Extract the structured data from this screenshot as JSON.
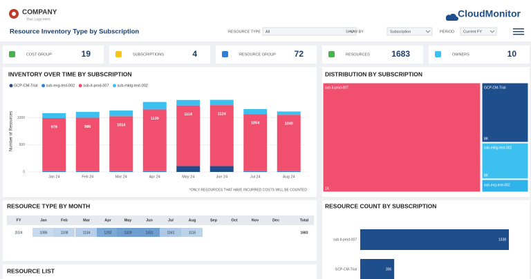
{
  "header": {
    "company": "COMPANY",
    "tagline": "Your Logo Here",
    "title": "Resource Inventory Type by Subscription",
    "brand": "CloudMonitor",
    "filters": [
      {
        "label": "RESOURCE TYPE",
        "value": "All"
      },
      {
        "label": "SHOW BY",
        "value": "Subscription"
      },
      {
        "label": "PERIOD",
        "value": "Current FY"
      }
    ]
  },
  "kpis": [
    {
      "label": "COST GROUP",
      "value": 19
    },
    {
      "label": "SUBSCRIPTIONS",
      "value": 4
    },
    {
      "label": "RESOURCE GROUP",
      "value": 72
    },
    {
      "label": "RESOURCES",
      "value": 1683
    },
    {
      "label": "OWNERS",
      "value": 10
    }
  ],
  "inventory": {
    "type": "bar",
    "stacked": true,
    "title": "INVENTORY OVER TIME BY SUBSCRIPTION",
    "y_label": "Number of Resources",
    "note": "*ONLY RESOURCES THAT HAVE INCURRED COSTS WILL BE COUNTED",
    "categories": [
      "Jan 24",
      "Feb 24",
      "Mar 24",
      "Apr 24",
      "May 24",
      "Jun 24",
      "Jul 24",
      "Aug 24"
    ],
    "series": [
      {
        "name": "GCP-CM-Trial",
        "color": "#1f4e8c",
        "values": [
          0,
          0,
          0,
          0,
          110,
          110,
          0,
          0
        ]
      },
      {
        "name": "sub-eng-test-002",
        "color": "#2f7fd6",
        "values": [
          15,
          15,
          15,
          15,
          0,
          0,
          15,
          15
        ]
      },
      {
        "name": "sub-it-prod-007",
        "color": "#f0506e",
        "values": [
          979,
          986,
          1014,
          1139,
          1118,
          1124,
          1054,
          1040
        ],
        "show_labels": true
      },
      {
        "name": "sub-mktg-test-002",
        "color": "#3cc0ef",
        "values": [
          92,
          107,
          105,
          138,
          101,
          97,
          92,
          61
        ]
      }
    ],
    "ylim": [
      0,
      1300
    ],
    "yticks": [
      0,
      500,
      1000
    ]
  },
  "treemap": {
    "title": "DISTRIBUTION BY SUBSCRIPTION",
    "items": [
      {
        "name": "sub-it-prod-007",
        "label": "1K",
        "color": "#f0506e"
      },
      {
        "name": "GCP-CM-Trial",
        "label": "8K",
        "color": "#1f4e8c"
      },
      {
        "name": "sub-mktg-test-002",
        "label": "8K",
        "color": "#3cc0ef"
      },
      {
        "name": "sub-eng-test-002",
        "label": null,
        "color": "#2fb2ea"
      }
    ]
  },
  "table": {
    "title": "RESOURCE TYPE BY MONTH",
    "columns": [
      "FY",
      "Jan",
      "Feb",
      "Mar",
      "Apr",
      "May",
      "Jun",
      "Jul",
      "Aug",
      "Sep",
      "Oct",
      "Nov",
      "Dec",
      "Total"
    ],
    "rows": [
      [
        2024,
        1086,
        1108,
        1134,
        1292,
        1329,
        1331,
        1161,
        1116,
        null,
        null,
        null,
        null,
        1683
      ]
    ]
  },
  "resource_count": {
    "type": "hbar",
    "title": "RESOURCE COUNT BY SUBSCRIPTION",
    "categories": [
      "sub-it-prod-007",
      "GCP-CM-Trial"
    ],
    "values": [
      1338,
      306
    ],
    "color": "#1f4e8c",
    "xlim": [
      0,
      1400
    ]
  },
  "resource_list": {
    "title": "RESOURCE LIST"
  }
}
